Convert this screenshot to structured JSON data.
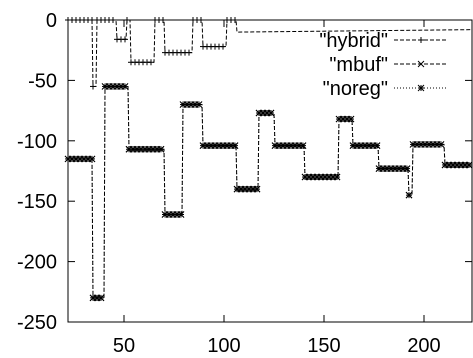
{
  "chart_data": {
    "type": "line",
    "title": "",
    "xlabel": "",
    "ylabel": "",
    "xlim": [
      22,
      224
    ],
    "ylim": [
      -250,
      0
    ],
    "x_ticks": [
      50,
      100,
      150,
      200
    ],
    "y_ticks": [
      0,
      -50,
      -100,
      -150,
      -200,
      -250
    ],
    "grid": false,
    "legend_position": "top-right",
    "series": [
      {
        "name": "\"hybrid\"",
        "style": "dashed",
        "marker": "plus",
        "points": [
          [
            22,
            0
          ],
          [
            34,
            0
          ],
          [
            34.5,
            -55
          ],
          [
            36,
            -55
          ],
          [
            36.5,
            0
          ],
          [
            46,
            0
          ],
          [
            46.5,
            -16
          ],
          [
            51,
            -16
          ],
          [
            51.5,
            0
          ],
          [
            53,
            0
          ],
          [
            53.5,
            -35
          ],
          [
            65,
            -35
          ],
          [
            65.5,
            0
          ],
          [
            70,
            0
          ],
          [
            70.5,
            -27
          ],
          [
            84,
            -27
          ],
          [
            84.5,
            0
          ],
          [
            89,
            0
          ],
          [
            89.5,
            -22
          ],
          [
            101,
            -22
          ],
          [
            101.5,
            0
          ],
          [
            106,
            0
          ],
          [
            106.5,
            -10
          ],
          [
            224,
            -8
          ]
        ]
      },
      {
        "name": "\"mbuf\"",
        "style": "dashed",
        "marker": "x",
        "points": [
          [
            22,
            -115
          ],
          [
            34,
            -115
          ],
          [
            34.5,
            -230
          ],
          [
            40,
            -230
          ],
          [
            40.5,
            -55
          ],
          [
            52,
            -55
          ],
          [
            52.5,
            -107
          ],
          [
            70,
            -107
          ],
          [
            70.5,
            -161
          ],
          [
            79,
            -161
          ],
          [
            79.5,
            -70
          ],
          [
            89,
            -70
          ],
          [
            89.5,
            -104
          ],
          [
            106,
            -104
          ],
          [
            106.5,
            -140
          ],
          [
            117,
            -140
          ],
          [
            117.5,
            -77
          ],
          [
            125,
            -77
          ],
          [
            125.5,
            -104
          ],
          [
            140,
            -104
          ],
          [
            140.5,
            -130
          ],
          [
            157,
            -130
          ],
          [
            157.5,
            -82
          ],
          [
            164,
            -82
          ],
          [
            164.5,
            -104
          ],
          [
            177,
            -104
          ],
          [
            177.5,
            -123
          ],
          [
            192,
            -123
          ],
          [
            192.5,
            -145
          ],
          [
            194,
            -145
          ],
          [
            194.5,
            -103
          ],
          [
            210,
            -103
          ],
          [
            210.5,
            -120
          ],
          [
            224,
            -120
          ]
        ]
      },
      {
        "name": "\"noreg\"",
        "style": "dotted",
        "marker": "star",
        "points": [
          [
            22,
            -115
          ],
          [
            34,
            -115
          ],
          [
            34.5,
            -230
          ],
          [
            40,
            -230
          ],
          [
            40.5,
            -55
          ],
          [
            52,
            -55
          ],
          [
            52.5,
            -107
          ],
          [
            70,
            -107
          ],
          [
            70.5,
            -161
          ],
          [
            79,
            -161
          ],
          [
            79.5,
            -70
          ],
          [
            89,
            -70
          ],
          [
            89.5,
            -104
          ],
          [
            106,
            -104
          ],
          [
            106.5,
            -140
          ],
          [
            117,
            -140
          ],
          [
            117.5,
            -77
          ],
          [
            125,
            -77
          ],
          [
            125.5,
            -104
          ],
          [
            140,
            -104
          ],
          [
            140.5,
            -130
          ],
          [
            157,
            -130
          ],
          [
            157.5,
            -82
          ],
          [
            164,
            -82
          ],
          [
            164.5,
            -104
          ],
          [
            177,
            -104
          ],
          [
            177.5,
            -123
          ],
          [
            192,
            -123
          ],
          [
            192.5,
            -145
          ],
          [
            194,
            -145
          ],
          [
            194.5,
            -103
          ],
          [
            210,
            -103
          ],
          [
            210.5,
            -120
          ],
          [
            224,
            -120
          ]
        ]
      }
    ]
  }
}
